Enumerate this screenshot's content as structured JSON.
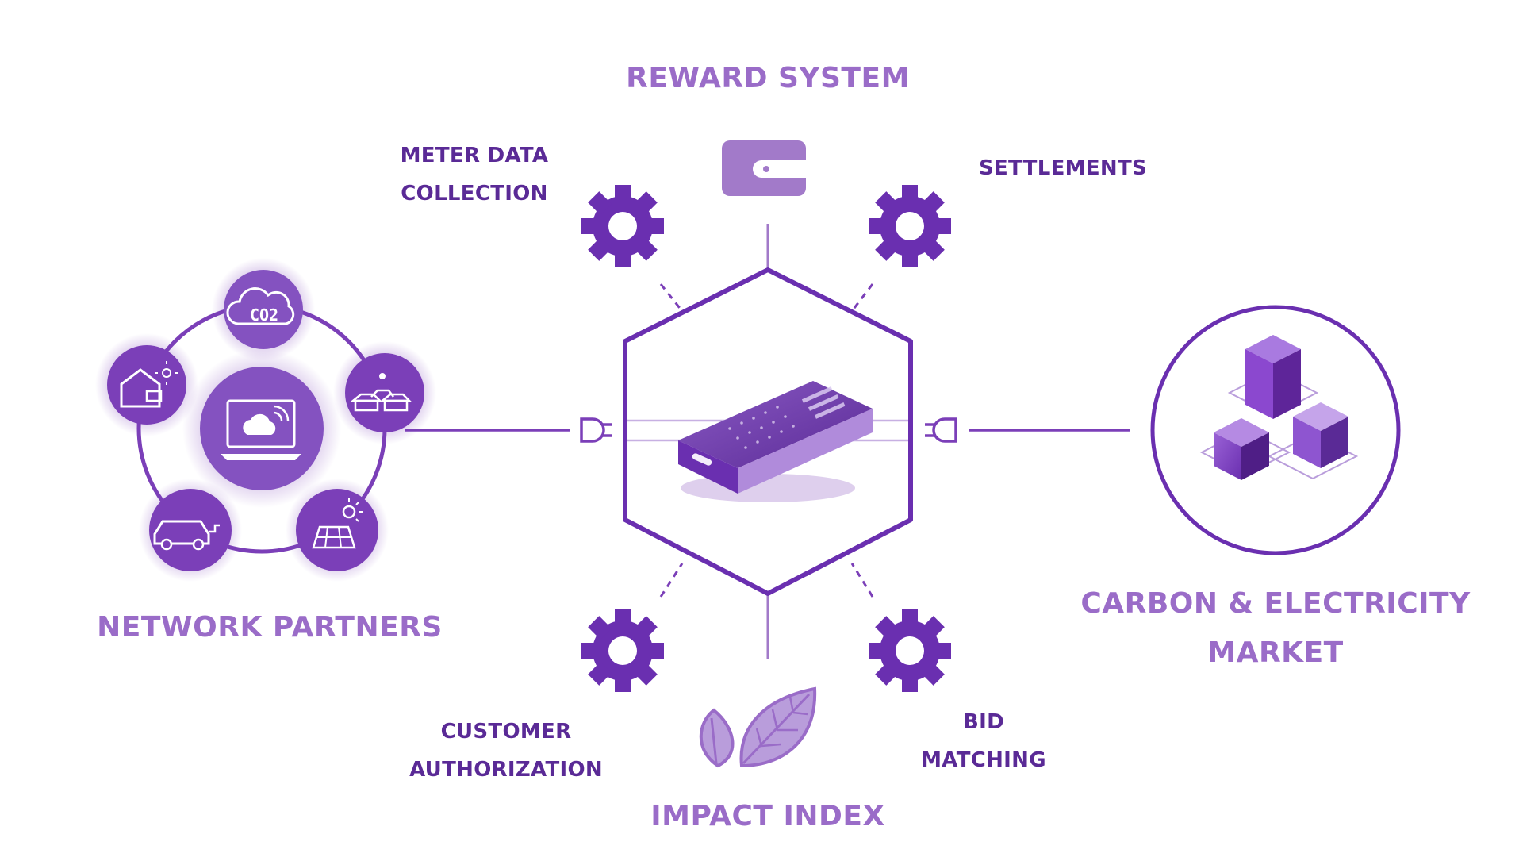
{
  "labels": {
    "reward_system": "REWARD SYSTEM",
    "meter_data": [
      "METER DATA",
      "COLLECTION"
    ],
    "settlements": "SETTLEMENTS",
    "network_partners": "NETWORK PARTNERS",
    "carbon_market": [
      "CARBON & ELECTRICITY",
      "MARKET"
    ],
    "customer_auth": [
      "CUSTOMER",
      "AUTHORIZATION"
    ],
    "bid_matching": [
      "BID",
      "MATCHING"
    ],
    "impact_index": "IMPACT INDEX",
    "co2": "CO2"
  },
  "colors": {
    "dark_purple": "#5a2a96",
    "mid_purple": "#7b3fb8",
    "light_purple": "#9a6cc8",
    "wallet_purple": "#a27ac9"
  },
  "icons": [
    "wallet-icon",
    "gear-icon",
    "leaf-icon",
    "device-icon",
    "plug-icon",
    "laptop-cloud-icon",
    "co2-cloud-icon",
    "smart-home-icon",
    "solar-village-icon",
    "electric-vehicle-icon",
    "solar-panel-icon",
    "cubes-icon"
  ]
}
